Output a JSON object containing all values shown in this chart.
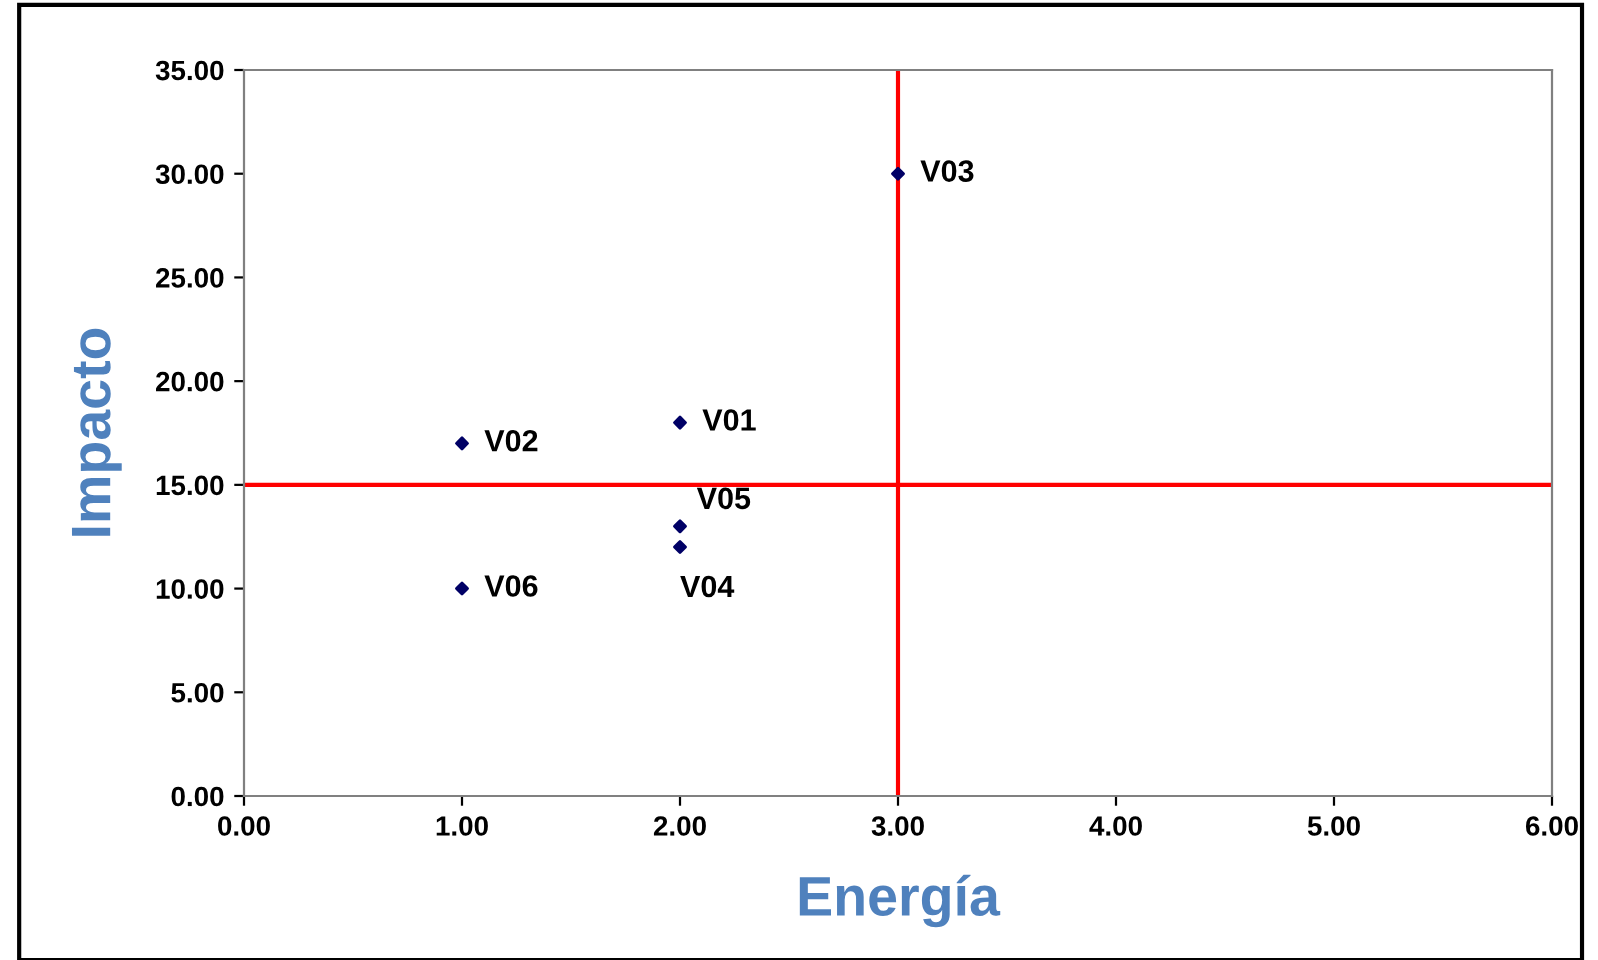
{
  "chart_data": {
    "type": "scatter",
    "xlabel": "Energía",
    "ylabel": "Impacto",
    "x": [
      2,
      1,
      3,
      2,
      2,
      1
    ],
    "series": [
      {
        "color": "#000066",
        "values": [
          18,
          17,
          30,
          12,
          13,
          10
        ]
      }
    ],
    "marker": "diamond",
    "xlim": [
      0,
      6
    ],
    "xticks": [
      {
        "value": 0,
        "label": "0.00"
      },
      {
        "value": 1,
        "label": "1.00"
      },
      {
        "value": 2,
        "label": "2.00"
      },
      {
        "value": 3,
        "label": "3.00"
      },
      {
        "value": 4,
        "label": "4.00"
      },
      {
        "value": 5,
        "label": "5.00"
      },
      {
        "value": 6,
        "label": "6.00"
      }
    ],
    "ylim": [
      0,
      35
    ],
    "yticks": [
      {
        "value": 0,
        "label": "0.00"
      },
      {
        "value": 5,
        "label": "5.00"
      },
      {
        "value": 10,
        "label": "10.00"
      },
      {
        "value": 15,
        "label": "15.00"
      },
      {
        "value": 20,
        "label": "20.00"
      },
      {
        "value": 25,
        "label": "25.00"
      },
      {
        "value": 30,
        "label": "30.00"
      },
      {
        "value": 35,
        "label": "35.00"
      }
    ],
    "ref_lines": [
      {
        "axis": "x",
        "value": 3,
        "color": "#ff0000"
      },
      {
        "axis": "y",
        "value": 15,
        "color": "#ff0000"
      }
    ],
    "annotations": [
      {
        "text": "V01",
        "x": 2,
        "y": 18
      },
      {
        "text": "V02",
        "x": 1,
        "y": 17
      },
      {
        "text": "V03",
        "x": 3,
        "y": 30
      },
      {
        "text": "V04",
        "x": 2,
        "y": 12
      },
      {
        "text": "V05",
        "x": 2,
        "y": 13
      },
      {
        "text": "V06",
        "x": 1,
        "y": 10
      }
    ],
    "grid": false,
    "legend": false
  }
}
